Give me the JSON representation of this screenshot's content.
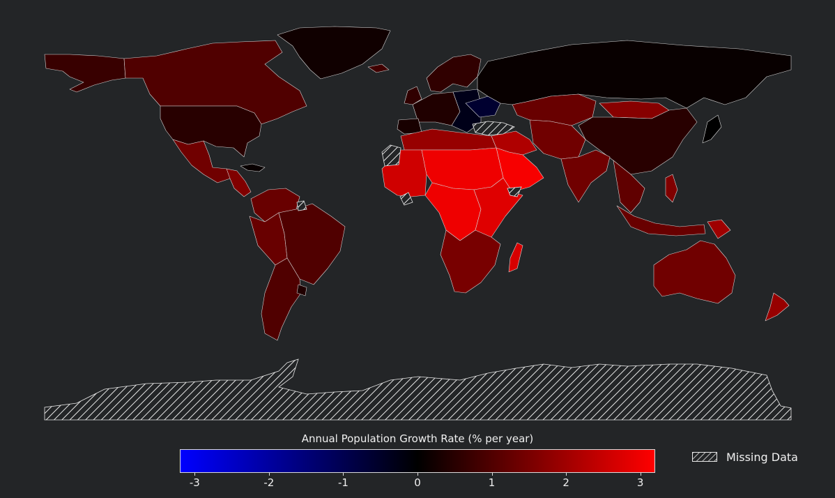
{
  "map": {
    "title": "",
    "projection": "equirectangular",
    "background_color": "#232527",
    "border_color": "#d8d8d8"
  },
  "colorbar": {
    "label": "Annual Population Growth Rate (% per year)",
    "min": -3.2,
    "max": 3.2,
    "ticks": [
      "-3",
      "-2",
      "-1",
      "0",
      "1",
      "2",
      "3"
    ],
    "tick_values": [
      -3,
      -2,
      -1,
      0,
      1,
      2,
      3
    ],
    "colors": [
      "#0000ff",
      "#000000",
      "#ff0000"
    ]
  },
  "legend": {
    "missing_label": "Missing Data",
    "pattern": "hatched"
  },
  "regions": [
    {
      "name": "Alaska",
      "value": 0.7
    },
    {
      "name": "Canada",
      "value": 1.0
    },
    {
      "name": "Greenland",
      "value": 0.2
    },
    {
      "name": "United States",
      "value": 0.5
    },
    {
      "name": "Mexico",
      "value": 1.4
    },
    {
      "name": "Central America",
      "value": 1.6
    },
    {
      "name": "Cuba",
      "value": 0.1
    },
    {
      "name": "Colombia and Venezuela",
      "value": 1.3
    },
    {
      "name": "Peru and Bolivia",
      "value": 1.3
    },
    {
      "name": "Brazil",
      "value": 1.0
    },
    {
      "name": "Argentina and Chile",
      "value": 1.0
    },
    {
      "name": "Uruguay",
      "value": 0.4
    },
    {
      "name": "Iceland",
      "value": 0.8
    },
    {
      "name": "Scandinavia",
      "value": 0.6
    },
    {
      "name": "United Kingdom",
      "value": 0.6
    },
    {
      "name": "Western Europe",
      "value": 0.4
    },
    {
      "name": "Iberia",
      "value": 0.3
    },
    {
      "name": "Eastern Europe",
      "value": -0.3
    },
    {
      "name": "Ukraine",
      "value": -0.6
    },
    {
      "name": "Russia",
      "value": 0.1
    },
    {
      "name": "Kazakhstan",
      "value": 1.3
    },
    {
      "name": "Mongolia",
      "value": 1.7
    },
    {
      "name": "China",
      "value": 0.5
    },
    {
      "name": "Japan",
      "value": 0.0
    },
    {
      "name": "Middle East",
      "value": 2.2
    },
    {
      "name": "Arabian Peninsula",
      "value": 3.1
    },
    {
      "name": "Iran",
      "value": 1.4
    },
    {
      "name": "South Asia",
      "value": 1.4
    },
    {
      "name": "Southeast Asia",
      "value": 1.2
    },
    {
      "name": "Indonesia",
      "value": 1.3
    },
    {
      "name": "Papua New Guinea",
      "value": 2.0
    },
    {
      "name": "Philippines",
      "value": 1.6
    },
    {
      "name": "North Africa",
      "value": 1.9
    },
    {
      "name": "West Africa",
      "value": 2.6
    },
    {
      "name": "Sahel",
      "value": 3.0
    },
    {
      "name": "Central Africa",
      "value": 3.0
    },
    {
      "name": "East Africa",
      "value": 2.8
    },
    {
      "name": "Southern Africa",
      "value": 1.5
    },
    {
      "name": "Madagascar",
      "value": 2.7
    },
    {
      "name": "Australia",
      "value": 1.4
    },
    {
      "name": "New Zealand",
      "value": 1.9
    }
  ],
  "missing_regions": [
    "Antarctica",
    "Turkey region",
    "Western Sahara",
    "Liberia",
    "Somalia",
    "French Guiana"
  ]
}
